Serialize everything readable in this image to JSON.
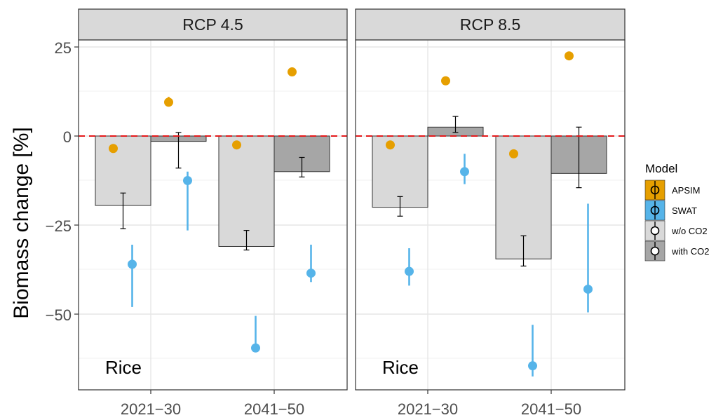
{
  "chart_data": {
    "type": "bar",
    "ylabel": "Biomass change [%]",
    "xlabel": "",
    "ylim": [
      -70,
      30
    ],
    "yticks": [
      25,
      0,
      -25,
      -50
    ],
    "ytick_labels": [
      "25",
      "0",
      "−25",
      "−50"
    ],
    "categories": [
      "2021−30",
      "2041−50"
    ],
    "reference_line": 0,
    "grid": true,
    "legend": {
      "title": "Model",
      "position": "right",
      "entries": [
        {
          "label": "APSIM",
          "color": "#E69F00"
        },
        {
          "label": "SWAT",
          "color": "#56B4E9"
        },
        {
          "label": "w/o CO2",
          "color": "#D9D9D9"
        },
        {
          "label": "with CO2",
          "color": "#A6A6A6"
        }
      ]
    },
    "colors": {
      "APSIM": "#E69F00",
      "SWAT": "#56B4E9",
      "w/o CO2": "#D9D9D9",
      "with CO2": "#A6A6A6",
      "reference": "#E41A1C"
    },
    "panels": [
      {
        "title": "RCP 4.5",
        "note": "Rice",
        "bars": [
          {
            "category": "2021−30",
            "series": "w/o CO2",
            "value": -19.5,
            "low": -26,
            "high": -16
          },
          {
            "category": "2021−30",
            "series": "with CO2",
            "value": -1.5,
            "low": -9,
            "high": 1
          },
          {
            "category": "2041−50",
            "series": "w/o CO2",
            "value": -31,
            "low": -32,
            "high": -26.5
          },
          {
            "category": "2041−50",
            "series": "with CO2",
            "value": -10,
            "low": -11.5,
            "high": -6
          }
        ],
        "points": [
          {
            "category": "2021−30",
            "series": "APSIM",
            "condition": "w/o CO2",
            "value": -3.5,
            "low": -4,
            "high": -3
          },
          {
            "category": "2021−30",
            "series": "SWAT",
            "condition": "w/o CO2",
            "value": -36,
            "low": -48,
            "high": -30.5
          },
          {
            "category": "2021−30",
            "series": "APSIM",
            "condition": "with CO2",
            "value": 9.5,
            "low": 8.5,
            "high": 11
          },
          {
            "category": "2021−30",
            "series": "SWAT",
            "condition": "with CO2",
            "value": -12.5,
            "low": -26.5,
            "high": -10
          },
          {
            "category": "2041−50",
            "series": "APSIM",
            "condition": "w/o CO2",
            "value": -2.5,
            "low": -3,
            "high": -2
          },
          {
            "category": "2041−50",
            "series": "SWAT",
            "condition": "w/o CO2",
            "value": -59.5,
            "low": -60,
            "high": -50.5
          },
          {
            "category": "2041−50",
            "series": "APSIM",
            "condition": "with CO2",
            "value": 18,
            "low": 17.5,
            "high": 18.5
          },
          {
            "category": "2041−50",
            "series": "SWAT",
            "condition": "with CO2",
            "value": -38.5,
            "low": -41,
            "high": -30.5
          }
        ]
      },
      {
        "title": "RCP 8.5",
        "note": "Rice",
        "bars": [
          {
            "category": "2021−30",
            "series": "w/o CO2",
            "value": -20,
            "low": -22.5,
            "high": -17
          },
          {
            "category": "2021−30",
            "series": "with CO2",
            "value": 2.5,
            "low": 1,
            "high": 5.5
          },
          {
            "category": "2041−50",
            "series": "w/o CO2",
            "value": -34.5,
            "low": -36.5,
            "high": -28
          },
          {
            "category": "2041−50",
            "series": "with CO2",
            "value": -10.5,
            "low": -14.5,
            "high": 2.5
          }
        ],
        "points": [
          {
            "category": "2021−30",
            "series": "APSIM",
            "condition": "w/o CO2",
            "value": -2.5,
            "low": -3,
            "high": -2
          },
          {
            "category": "2021−30",
            "series": "SWAT",
            "condition": "w/o CO2",
            "value": -38,
            "low": -42,
            "high": -31.5
          },
          {
            "category": "2021−30",
            "series": "APSIM",
            "condition": "with CO2",
            "value": 15.5,
            "low": 15,
            "high": 16
          },
          {
            "category": "2021−30",
            "series": "SWAT",
            "condition": "with CO2",
            "value": -10,
            "low": -13.5,
            "high": -5
          },
          {
            "category": "2041−50",
            "series": "APSIM",
            "condition": "w/o CO2",
            "value": -5,
            "low": -5.5,
            "high": -4.5
          },
          {
            "category": "2041−50",
            "series": "SWAT",
            "condition": "w/o CO2",
            "value": -64.5,
            "low": -67.5,
            "high": -53
          },
          {
            "category": "2041−50",
            "series": "APSIM",
            "condition": "with CO2",
            "value": 22.5,
            "low": 21.5,
            "high": 23.5
          },
          {
            "category": "2041−50",
            "series": "SWAT",
            "condition": "with CO2",
            "value": -43,
            "low": -49.5,
            "high": -19
          }
        ]
      }
    ]
  }
}
